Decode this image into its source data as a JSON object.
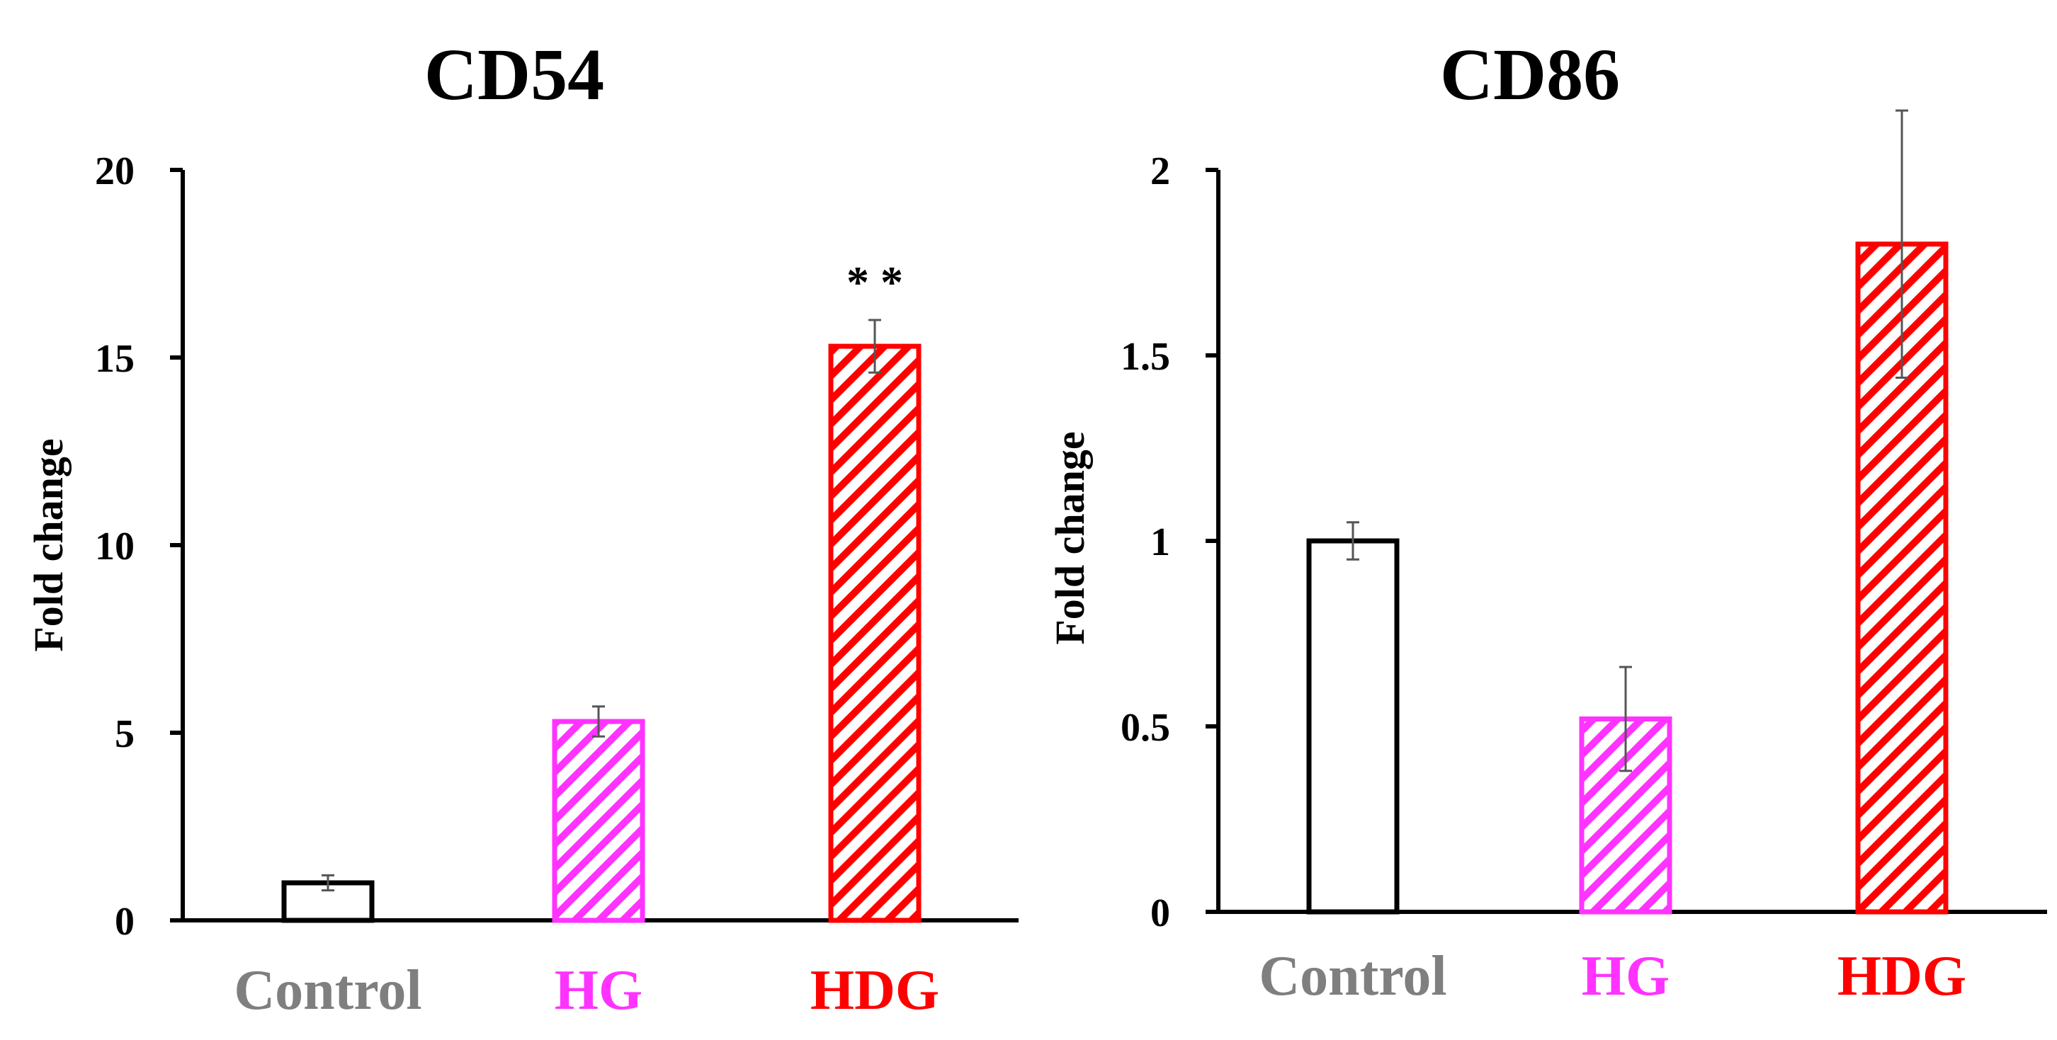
{
  "chart_data": [
    {
      "type": "bar",
      "title": "CD54",
      "xlabel": "",
      "ylabel": "Fold change",
      "ylim": [
        0,
        20
      ],
      "yticks": [
        "0",
        "5",
        "10",
        "15",
        "20"
      ],
      "categories": [
        "Control",
        "HG",
        "HDG"
      ],
      "values": [
        1.0,
        5.3,
        15.3
      ],
      "errors": [
        0.2,
        0.4,
        0.7
      ],
      "annotations": [
        "",
        "",
        "* *"
      ],
      "grid": false
    },
    {
      "type": "bar",
      "title": "CD86",
      "xlabel": "",
      "ylabel": "Fold change",
      "ylim": [
        0,
        2
      ],
      "yticks": [
        "0",
        "0.5",
        "1",
        "1.5",
        "2"
      ],
      "categories": [
        "Control",
        "HG",
        "HDG"
      ],
      "values": [
        1.0,
        0.52,
        1.8
      ],
      "errors": [
        0.05,
        0.14,
        0.36
      ],
      "annotations": [
        "",
        "",
        ""
      ],
      "grid": false
    }
  ],
  "styles": {
    "category_colors": [
      "#7f7f7f",
      "#ff33ff",
      "#ff0000"
    ],
    "bar_strokes": [
      "#000000",
      "#ff33ff",
      "#ff0000"
    ],
    "bar_patterns": [
      "none",
      "hatch",
      "hatch"
    ],
    "axis_color": "#000000",
    "error_bar_color": "#555555"
  }
}
